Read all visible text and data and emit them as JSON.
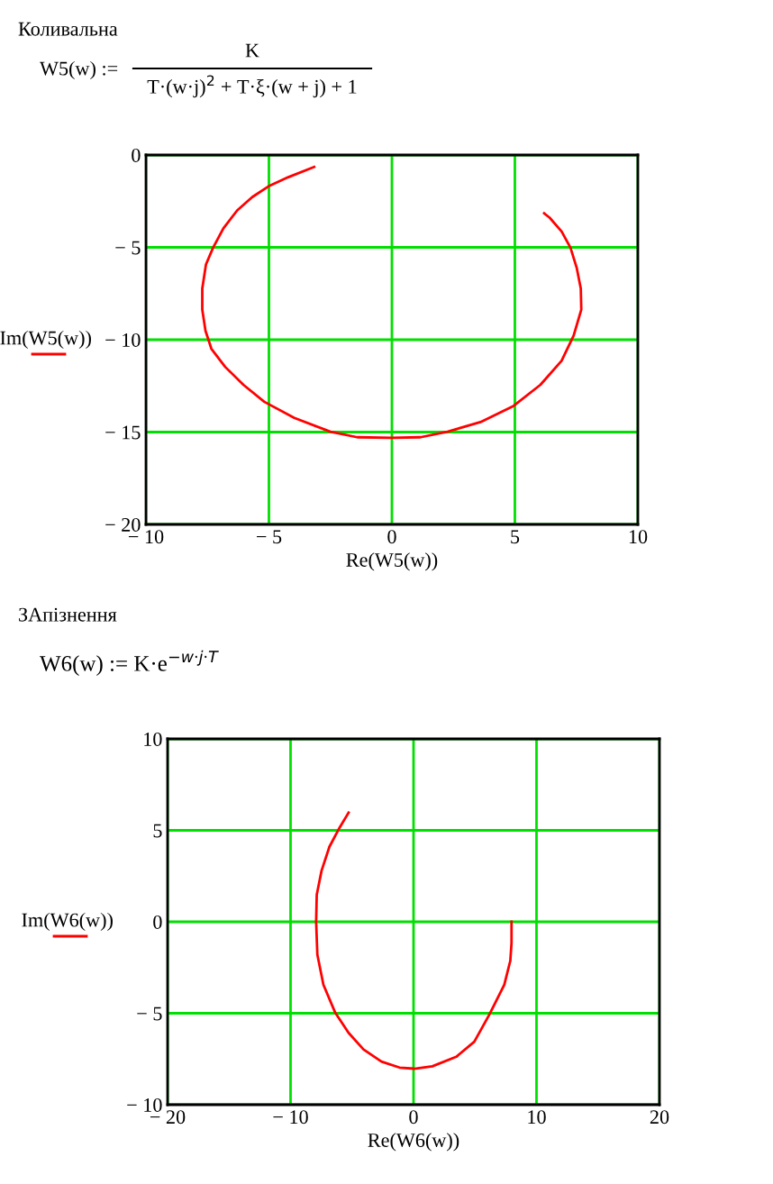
{
  "chart_data": [
    {
      "type": "line",
      "title": "Коливальна",
      "annotations": [
        "W5(w) :=",
        "K",
        "T·(w·j)$^{2}$ + T·ξ·(w + j) + 1"
      ],
      "xlabel": "Re(W5(w))",
      "ylabel": "Im(W5(w))",
      "xlim": [
        -10,
        10
      ],
      "xticks": [
        {
          "value": -10,
          "label": "− 10"
        },
        {
          "value": -5,
          "label": "− 5"
        },
        0,
        5,
        10
      ],
      "ylim": [
        -20,
        0
      ],
      "yticks": [
        {
          "value": -20,
          "label": "− 20"
        },
        {
          "value": -15,
          "label": "− 15"
        },
        {
          "value": -10,
          "label": "− 10"
        },
        {
          "value": -5,
          "label": "− 5"
        },
        0
      ],
      "grid": true,
      "legend": false,
      "series": [
        {
          "color": "#ff0000",
          "x": [
            -3.16,
            -4.21,
            -5.02,
            -5.68,
            -6.29,
            -6.85,
            -7.27,
            -7.56,
            -7.71,
            -7.71,
            -7.58,
            -7.34,
            -6.78,
            -6.04,
            -5.19,
            -3.97,
            -2.5,
            -1.41,
            -0.01,
            1.16,
            2.26,
            3.6,
            4.95,
            6.04,
            6.9,
            7.39,
            7.7,
            7.68,
            7.51,
            7.26,
            6.9,
            6.41,
            6.19
          ],
          "values": [
            -0.65,
            -1.2,
            -1.7,
            -2.28,
            -3.0,
            -3.97,
            -5.02,
            -5.93,
            -7.23,
            -8.37,
            -9.51,
            -10.49,
            -11.47,
            -12.44,
            -13.36,
            -14.23,
            -14.98,
            -15.28,
            -15.31,
            -15.28,
            -14.98,
            -14.46,
            -13.58,
            -12.44,
            -11.14,
            -9.77,
            -8.37,
            -7.23,
            -6.09,
            -5.02,
            -4.14,
            -3.39,
            -3.16
          ]
        }
      ]
    },
    {
      "type": "line",
      "title": "ЗАпізнення",
      "annotations": [
        "W6(w) := K·e$^{−w·j·T}$"
      ],
      "xlabel": "Re(W6(w))",
      "ylabel": "Im(W6(w))",
      "xlim": [
        -20,
        20
      ],
      "xticks": [
        {
          "value": -20,
          "label": "− 20"
        },
        {
          "value": -10,
          "label": "− 10"
        },
        0,
        10,
        20
      ],
      "ylim": [
        -10,
        10
      ],
      "yticks": [
        {
          "value": -10,
          "label": "− 10"
        },
        {
          "value": -5,
          "label": "− 5"
        },
        0,
        5,
        10
      ],
      "grid": true,
      "legend": false,
      "series": [
        {
          "color": "#ff0000",
          "x": [
            -5.28,
            -6.01,
            -6.84,
            -7.48,
            -7.87,
            -7.92,
            -7.82,
            -7.33,
            -6.36,
            -5.28,
            -4.07,
            -2.61,
            -1.14,
            0.07,
            1.53,
            3.48,
            4.94,
            6.16,
            7.38,
            7.87,
            7.97,
            7.97
          ],
          "values": [
            5.97,
            5.15,
            4.1,
            2.79,
            1.48,
            0,
            -1.8,
            -3.44,
            -4.98,
            -6.07,
            -6.98,
            -7.64,
            -7.97,
            -8.03,
            -7.9,
            -7.38,
            -6.56,
            -5.08,
            -3.44,
            -2.13,
            -1.15,
            0
          ]
        }
      ]
    }
  ]
}
